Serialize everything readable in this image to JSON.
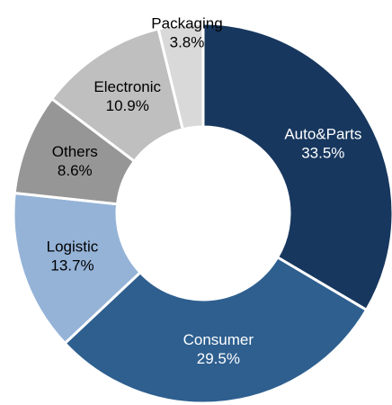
{
  "chart_data": {
    "type": "donut",
    "categories": [
      "Auto&Parts",
      "Consumer",
      "Logistic",
      "Others",
      "Electronic",
      "Packaging"
    ],
    "values": [
      33.5,
      29.5,
      13.7,
      8.6,
      10.9,
      3.8
    ],
    "value_labels": [
      "33.5%",
      "29.5%",
      "13.7%",
      "8.6%",
      "10.9%",
      "3.8%"
    ],
    "colors": [
      "#17375e",
      "#2e5f8f",
      "#95b3d7",
      "#969696",
      "#bfbfbf",
      "#d9d9d9"
    ]
  }
}
